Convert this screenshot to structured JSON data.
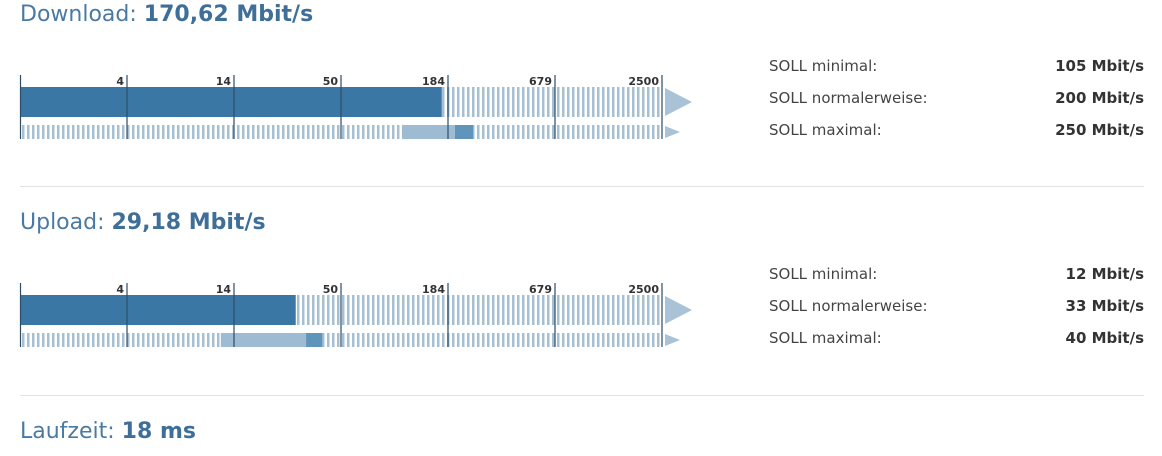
{
  "colors": {
    "heading": "#4a7aa3",
    "bar_fill": "#3b77a4",
    "bar_stripe": "#a6bfd3",
    "range_fill": "#9dbbd3",
    "range_typical": "#5f94bb",
    "arrow": "#a9c2d6",
    "tick_line": "#2d4d6a"
  },
  "scale_ticks": [
    "4",
    "14",
    "50",
    "184",
    "679",
    "2500"
  ],
  "download": {
    "label": "Download:",
    "value": "170,62 Mbit/s",
    "measured_mbit": 170.62,
    "soll": [
      {
        "label": "SOLL minimal:",
        "value": "105 Mbit/s"
      },
      {
        "label": "SOLL normalerweise:",
        "value": "200 Mbit/s"
      },
      {
        "label": "SOLL maximal:",
        "value": "250 Mbit/s"
      }
    ],
    "range_mbit": {
      "min": 105,
      "typical": 200,
      "max": 250
    }
  },
  "upload": {
    "label": "Upload:",
    "value": "29,18 Mbit/s",
    "measured_mbit": 29.18,
    "soll": [
      {
        "label": "SOLL minimal:",
        "value": "12 Mbit/s"
      },
      {
        "label": "SOLL normalerweise:",
        "value": "33 Mbit/s"
      },
      {
        "label": "SOLL maximal:",
        "value": "40 Mbit/s"
      }
    ],
    "range_mbit": {
      "min": 12,
      "typical": 33,
      "max": 40
    }
  },
  "latency": {
    "label": "Laufzeit:",
    "value": "18 ms"
  }
}
